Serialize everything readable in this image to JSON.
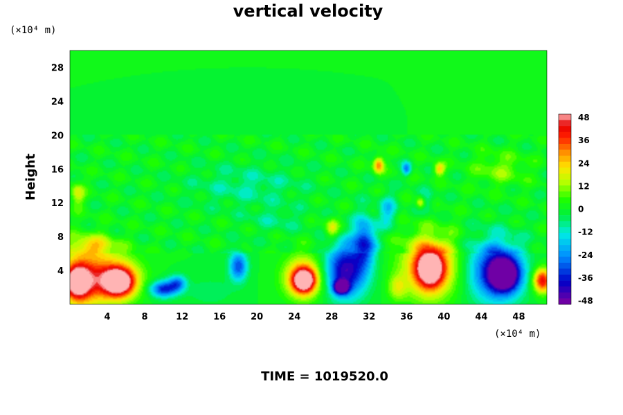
{
  "chart_data": {
    "type": "heatmap",
    "title": "vertical velocity",
    "xlabel": "",
    "ylabel": "Height",
    "x_unit": "(×10⁴ m)",
    "y_unit": "(×10⁴ m)",
    "xlim": [
      0,
      51
    ],
    "ylim": [
      0,
      30
    ],
    "x_ticks": [
      4,
      8,
      12,
      16,
      20,
      24,
      28,
      32,
      36,
      40,
      44,
      48
    ],
    "y_ticks": [
      4,
      8,
      12,
      16,
      20,
      24,
      28
    ],
    "colorbar": {
      "ticks": [
        48,
        36,
        24,
        12,
        0,
        -12,
        -24,
        -36,
        -48
      ],
      "min": -48,
      "max": 48,
      "levels": 32
    },
    "background_value": 0,
    "features": [
      {
        "x": 0.8,
        "y": 2.6,
        "rx": 1.4,
        "ry": 2.0,
        "value": 48
      },
      {
        "x": 1.8,
        "y": 3.2,
        "rx": 3.0,
        "ry": 3.8,
        "value": 30
      },
      {
        "x": 5.2,
        "y": 2.6,
        "rx": 1.6,
        "ry": 1.6,
        "value": 44
      },
      {
        "x": 5.2,
        "y": 3.0,
        "rx": 2.6,
        "ry": 2.6,
        "value": 28
      },
      {
        "x": 2.5,
        "y": 7.0,
        "rx": 2.5,
        "ry": 1.2,
        "value": 14
      },
      {
        "x": 10.0,
        "y": 1.8,
        "rx": 1.5,
        "ry": 1.0,
        "value": -34
      },
      {
        "x": 11.5,
        "y": 2.5,
        "rx": 1.0,
        "ry": 1.0,
        "value": -24
      },
      {
        "x": 18.0,
        "y": 4.5,
        "rx": 1.0,
        "ry": 1.8,
        "value": -30
      },
      {
        "x": 25.0,
        "y": 2.8,
        "rx": 1.2,
        "ry": 1.4,
        "value": 48
      },
      {
        "x": 25.0,
        "y": 3.2,
        "rx": 2.2,
        "ry": 2.6,
        "value": 30
      },
      {
        "x": 29.5,
        "y": 4.0,
        "rx": 2.3,
        "ry": 3.3,
        "value": -42
      },
      {
        "x": 31.5,
        "y": 7.5,
        "rx": 1.2,
        "ry": 3.0,
        "value": -30
      },
      {
        "x": 29.0,
        "y": 2.0,
        "rx": 0.8,
        "ry": 0.8,
        "value": -48
      },
      {
        "x": 38.5,
        "y": 4.2,
        "rx": 1.5,
        "ry": 2.2,
        "value": 48
      },
      {
        "x": 38.5,
        "y": 4.5,
        "rx": 3.2,
        "ry": 4.0,
        "value": 30
      },
      {
        "x": 46.5,
        "y": 3.5,
        "rx": 1.6,
        "ry": 2.0,
        "value": -48
      },
      {
        "x": 45.5,
        "y": 4.0,
        "rx": 3.0,
        "ry": 3.8,
        "value": -36
      },
      {
        "x": 50.5,
        "y": 2.8,
        "rx": 1.0,
        "ry": 1.5,
        "value": 42
      },
      {
        "x": 33.0,
        "y": 16.5,
        "rx": 0.6,
        "ry": 1.0,
        "value": 30
      },
      {
        "x": 39.5,
        "y": 16.0,
        "rx": 0.6,
        "ry": 0.8,
        "value": 24
      },
      {
        "x": 37.5,
        "y": 12.0,
        "rx": 0.5,
        "ry": 0.8,
        "value": 22
      },
      {
        "x": 36.0,
        "y": 16.0,
        "rx": 0.5,
        "ry": 0.8,
        "value": -24
      },
      {
        "x": 28.0,
        "y": 9.0,
        "rx": 0.8,
        "ry": 1.2,
        "value": 18
      },
      {
        "x": 0.8,
        "y": 13.0,
        "rx": 0.8,
        "ry": 1.5,
        "value": 16
      },
      {
        "x": 19.0,
        "y": 14.0,
        "rx": 6.0,
        "ry": 2.5,
        "value": -8
      },
      {
        "x": 22.0,
        "y": 10.0,
        "rx": 3.0,
        "ry": 1.5,
        "value": -6
      },
      {
        "x": 34.0,
        "y": 11.0,
        "rx": 1.0,
        "ry": 2.0,
        "value": -16
      },
      {
        "x": 38.0,
        "y": 12.0,
        "rx": 1.0,
        "ry": 1.5,
        "value": -10
      },
      {
        "x": 46.0,
        "y": 16.0,
        "rx": 3.0,
        "ry": 2.0,
        "value": 10
      },
      {
        "x": 15.0,
        "y": 1.5,
        "rx": 2.5,
        "ry": 1.5,
        "value": -6
      },
      {
        "x": 35.0,
        "y": 2.0,
        "rx": 1.0,
        "ry": 1.5,
        "value": 14
      }
    ]
  },
  "footer": {
    "time_label": "TIME = 1019520.0"
  }
}
